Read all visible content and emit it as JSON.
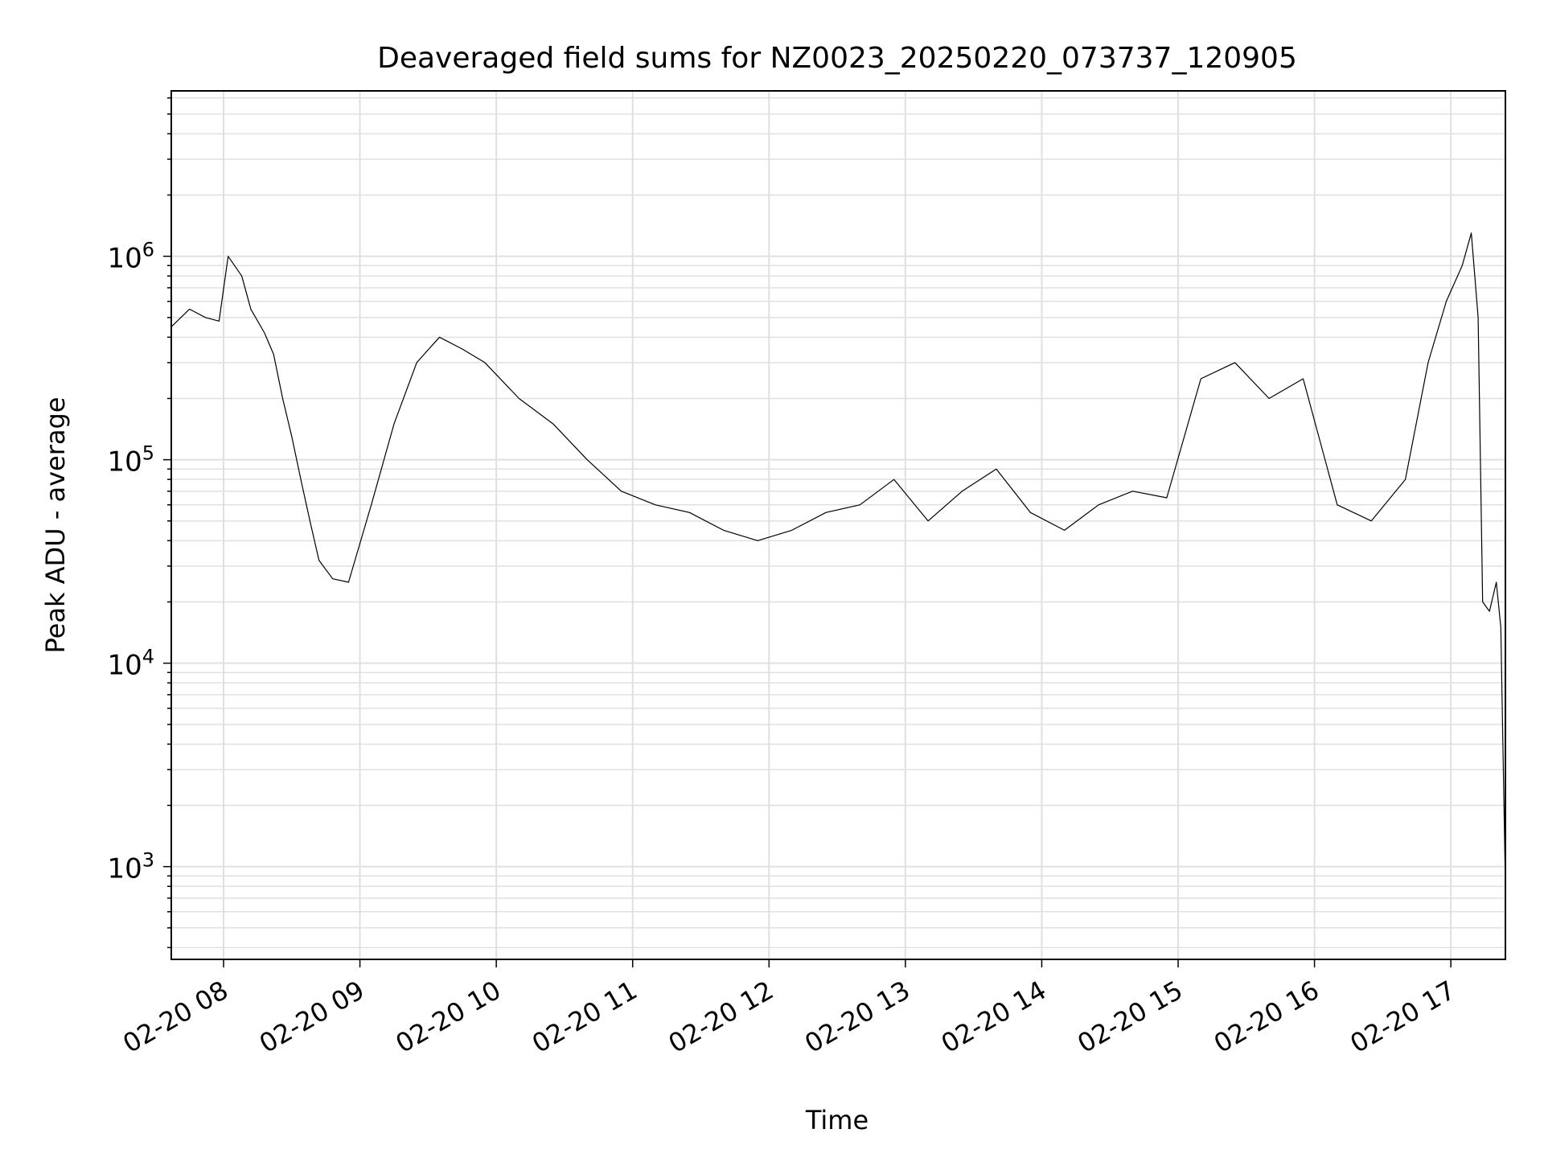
{
  "chart_data": {
    "type": "line",
    "title": "Deaveraged field sums for NZ0023_20250220_073737_120905",
    "xlabel": "Time",
    "ylabel": "Peak ADU - average",
    "yscale": "log",
    "ylim": [
      350,
      6500000
    ],
    "xlim": [
      "2025-02-20 07:37",
      "2025-02-20 17:24"
    ],
    "grid": true,
    "line_color": "#000000",
    "grid_color": "#e0e0e0",
    "x_ticks": [
      {
        "t": "2025-02-20 08:00",
        "label": "02-20 08"
      },
      {
        "t": "2025-02-20 09:00",
        "label": "02-20 09"
      },
      {
        "t": "2025-02-20 10:00",
        "label": "02-20 10"
      },
      {
        "t": "2025-02-20 11:00",
        "label": "02-20 11"
      },
      {
        "t": "2025-02-20 12:00",
        "label": "02-20 12"
      },
      {
        "t": "2025-02-20 13:00",
        "label": "02-20 13"
      },
      {
        "t": "2025-02-20 14:00",
        "label": "02-20 14"
      },
      {
        "t": "2025-02-20 15:00",
        "label": "02-20 15"
      },
      {
        "t": "2025-02-20 16:00",
        "label": "02-20 16"
      },
      {
        "t": "2025-02-20 17:00",
        "label": "02-20 17"
      }
    ],
    "y_ticks": [
      {
        "value": 1000,
        "base": "10",
        "exp": "3"
      },
      {
        "value": 10000,
        "base": "10",
        "exp": "4"
      },
      {
        "value": 100000,
        "base": "10",
        "exp": "5"
      },
      {
        "value": 1000000,
        "base": "10",
        "exp": "6"
      }
    ],
    "series": [
      {
        "x": [
          "2025-02-20 07:37",
          "2025-02-20 07:45",
          "2025-02-20 07:52",
          "2025-02-20 07:58",
          "2025-02-20 08:02",
          "2025-02-20 08:08",
          "2025-02-20 08:12",
          "2025-02-20 08:18",
          "2025-02-20 08:22",
          "2025-02-20 08:26",
          "2025-02-20 08:30",
          "2025-02-20 08:34",
          "2025-02-20 08:38",
          "2025-02-20 08:42",
          "2025-02-20 08:48",
          "2025-02-20 08:55",
          "2025-02-20 09:05",
          "2025-02-20 09:15",
          "2025-02-20 09:25",
          "2025-02-20 09:35",
          "2025-02-20 09:45",
          "2025-02-20 09:55",
          "2025-02-20 10:10",
          "2025-02-20 10:25",
          "2025-02-20 10:40",
          "2025-02-20 10:55",
          "2025-02-20 11:10",
          "2025-02-20 11:25",
          "2025-02-20 11:40",
          "2025-02-20 11:55",
          "2025-02-20 12:10",
          "2025-02-20 12:25",
          "2025-02-20 12:40",
          "2025-02-20 12:55",
          "2025-02-20 13:10",
          "2025-02-20 13:25",
          "2025-02-20 13:40",
          "2025-02-20 13:55",
          "2025-02-20 14:10",
          "2025-02-20 14:25",
          "2025-02-20 14:40",
          "2025-02-20 14:55",
          "2025-02-20 15:10",
          "2025-02-20 15:25",
          "2025-02-20 15:40",
          "2025-02-20 15:55",
          "2025-02-20 16:10",
          "2025-02-20 16:25",
          "2025-02-20 16:40",
          "2025-02-20 16:50",
          "2025-02-20 16:58",
          "2025-02-20 17:05",
          "2025-02-20 17:09",
          "2025-02-20 17:12",
          "2025-02-20 17:14",
          "2025-02-20 17:17",
          "2025-02-20 17:20",
          "2025-02-20 17:22",
          "2025-02-20 17:24"
        ],
        "y": [
          450000,
          550000,
          500000,
          480000,
          1000000,
          800000,
          550000,
          420000,
          330000,
          200000,
          130000,
          80000,
          50000,
          32000,
          26000,
          25000,
          60000,
          150000,
          300000,
          400000,
          350000,
          300000,
          200000,
          150000,
          100000,
          70000,
          60000,
          55000,
          45000,
          40000,
          45000,
          55000,
          60000,
          80000,
          50000,
          70000,
          90000,
          55000,
          45000,
          60000,
          70000,
          65000,
          250000,
          300000,
          200000,
          250000,
          60000,
          50000,
          80000,
          300000,
          600000,
          900000,
          1300000,
          500000,
          20000,
          18000,
          25000,
          15000,
          800
        ]
      }
    ]
  }
}
